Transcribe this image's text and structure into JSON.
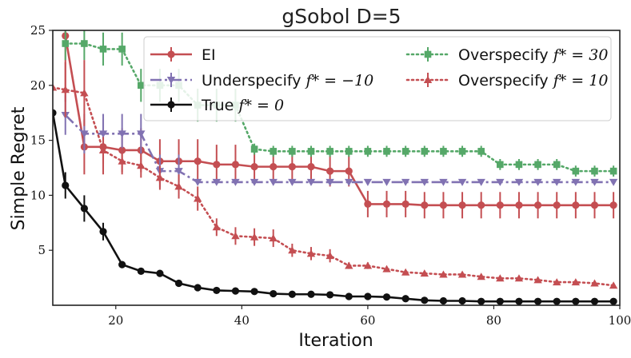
{
  "chart_data": {
    "type": "line",
    "title": "gSobol D=5",
    "xlabel": "Iteration",
    "ylabel": "Simple Regret",
    "xlim": [
      10,
      100
    ],
    "ylim": [
      0,
      25
    ],
    "xticks": [
      20,
      40,
      60,
      80,
      100
    ],
    "yticks": [
      5,
      10,
      15,
      20,
      25
    ],
    "legend_position": "top-right",
    "series": [
      {
        "name": "EI",
        "legend_label": "EI",
        "color": "#c44e52",
        "linestyle": "solid",
        "marker": "circle",
        "x": [
          12,
          15,
          18,
          21,
          24,
          27,
          30,
          33,
          36,
          39,
          42,
          45,
          48,
          51,
          54,
          57,
          60,
          63,
          66,
          69,
          72,
          75,
          78,
          81,
          84,
          87,
          90,
          93,
          96,
          99
        ],
        "y": [
          24.5,
          14.4,
          14.4,
          14.1,
          14.1,
          13.1,
          13.1,
          13.1,
          12.8,
          12.8,
          12.6,
          12.6,
          12.6,
          12.6,
          12.2,
          12.2,
          9.2,
          9.2,
          9.2,
          9.1,
          9.1,
          9.1,
          9.1,
          9.1,
          9.1,
          9.1,
          9.1,
          9.1,
          9.1,
          9.1
        ],
        "err": [
          6,
          2.5,
          2.5,
          2,
          2,
          2,
          2,
          2,
          1.8,
          1.8,
          1.6,
          1.6,
          1.6,
          1.6,
          1.4,
          1.4,
          1.2,
          1.2,
          1.2,
          1.2,
          1.2,
          1.2,
          1.2,
          1.2,
          1.2,
          1.2,
          1.2,
          1.2,
          1.2,
          1.2
        ]
      },
      {
        "name": "Underspecify",
        "legend_label": "Underspecify f* = −10",
        "color": "#8172b2",
        "linestyle": "dashdot",
        "marker": "triangle-down",
        "x": [
          12,
          15,
          18,
          21,
          24,
          27,
          30,
          33,
          36,
          39,
          42,
          45,
          48,
          51,
          54,
          57,
          60,
          63,
          66,
          69,
          72,
          75,
          78,
          81,
          84,
          87,
          90,
          93,
          96,
          99
        ],
        "y": [
          17.3,
          15.6,
          15.6,
          15.6,
          15.6,
          12.2,
          12.2,
          11.2,
          11.2,
          11.2,
          11.2,
          11.2,
          11.2,
          11.2,
          11.2,
          11.2,
          11.2,
          11.2,
          11.2,
          11.2,
          11.2,
          11.2,
          11.2,
          11.2,
          11.2,
          11.2,
          11.2,
          11.2,
          11.2,
          11.2
        ],
        "err": [
          1.8,
          1.8,
          1.8,
          1.8,
          1.8,
          1.5,
          1.5,
          0.2,
          0.2,
          0.2,
          0.2,
          0.2,
          0.2,
          0.2,
          0.2,
          0.2,
          0.2,
          0.2,
          0.2,
          0.2,
          0.2,
          0.2,
          0.2,
          0.2,
          0.2,
          0.2,
          0.2,
          0.2,
          0.2,
          0.2
        ]
      },
      {
        "name": "True",
        "legend_label": "True f* = 0",
        "color": "#111111",
        "linestyle": "solid",
        "marker": "circle",
        "x": [
          10,
          12,
          15,
          18,
          21,
          24,
          27,
          30,
          33,
          36,
          39,
          42,
          45,
          48,
          51,
          54,
          57,
          60,
          63,
          66,
          69,
          72,
          75,
          78,
          81,
          84,
          87,
          90,
          93,
          96,
          99
        ],
        "y": [
          17.5,
          10.9,
          8.8,
          6.7,
          3.7,
          3.1,
          2.9,
          2.0,
          1.6,
          1.35,
          1.3,
          1.25,
          1.05,
          1.0,
          1.0,
          0.95,
          0.8,
          0.8,
          0.75,
          0.6,
          0.45,
          0.4,
          0.4,
          0.35,
          0.35,
          0.35,
          0.35,
          0.35,
          0.35,
          0.35,
          0.35
        ],
        "err": [
          0,
          1.2,
          1.2,
          0.8,
          0.2,
          0.2,
          0.2,
          0.2,
          0.2,
          0.15,
          0.15,
          0.15,
          0.1,
          0.1,
          0.1,
          0.1,
          0.1,
          0.1,
          0.1,
          0.1,
          0.1,
          0.1,
          0.1,
          0.1,
          0.1,
          0.1,
          0.1,
          0.1,
          0.1,
          0.1,
          0.1
        ]
      },
      {
        "name": "Overspecify30",
        "legend_label": "Overspecify f* = 30",
        "color": "#55a868",
        "linestyle": "dotted",
        "marker": "square",
        "x": [
          12,
          15,
          18,
          21,
          24,
          27,
          30,
          33,
          36,
          39,
          42,
          45,
          48,
          51,
          54,
          57,
          60,
          63,
          66,
          69,
          72,
          75,
          78,
          81,
          84,
          87,
          90,
          93,
          96,
          99
        ],
        "y": [
          23.8,
          23.8,
          23.3,
          23.3,
          20.0,
          20.0,
          20.0,
          18.2,
          18.2,
          18.2,
          14.2,
          14.0,
          14.0,
          14.0,
          14.0,
          14.0,
          14.0,
          14.0,
          14.0,
          14.0,
          14.0,
          14.0,
          14.0,
          12.8,
          12.8,
          12.8,
          12.8,
          12.2,
          12.2,
          12.2
        ],
        "err": [
          1.5,
          1.5,
          1.5,
          1.5,
          1.5,
          1.5,
          1.5,
          1.5,
          1.5,
          1.5,
          0.5,
          0.5,
          0.5,
          0.5,
          0.5,
          0.5,
          0.5,
          0.5,
          0.5,
          0.5,
          0.5,
          0.5,
          0.5,
          0.5,
          0.5,
          0.5,
          0.5,
          0.5,
          0.5,
          0.5
        ]
      },
      {
        "name": "Overspecify10",
        "legend_label": "Overspecify f* = 10",
        "color": "#c44e52",
        "linestyle": "dotted",
        "marker": "triangle-up",
        "x": [
          10,
          12,
          15,
          18,
          21,
          24,
          27,
          30,
          33,
          36,
          39,
          42,
          45,
          48,
          51,
          54,
          57,
          60,
          63,
          66,
          69,
          72,
          75,
          78,
          81,
          84,
          87,
          90,
          93,
          96,
          99
        ],
        "y": [
          19.8,
          19.6,
          19.3,
          14.1,
          13.1,
          12.7,
          11.6,
          10.8,
          9.7,
          7.1,
          6.3,
          6.2,
          6.1,
          5.0,
          4.7,
          4.5,
          3.6,
          3.6,
          3.3,
          3.0,
          2.9,
          2.8,
          2.8,
          2.6,
          2.45,
          2.45,
          2.3,
          2.1,
          2.1,
          2.0,
          1.8
        ],
        "err": [
          0,
          2.5,
          3,
          1.2,
          1.2,
          1.1,
          1.1,
          1.1,
          1.1,
          0.8,
          0.8,
          0.8,
          0.8,
          0.6,
          0.6,
          0.6,
          0.3,
          0.3,
          0.2,
          0.2,
          0.2,
          0.2,
          0.2,
          0.2,
          0.2,
          0.2,
          0.2,
          0.2,
          0.2,
          0.2,
          0.2
        ]
      }
    ]
  },
  "legend": {
    "ei": "EI",
    "under_prefix": "Underspecify",
    "under_math": "f* = −10",
    "true_prefix": "True",
    "true_math": "f* = 0",
    "over30_prefix": "Overspecify",
    "over30_math": "f* = 30",
    "over10_prefix": "Overspecify",
    "over10_math": "f* = 10"
  }
}
